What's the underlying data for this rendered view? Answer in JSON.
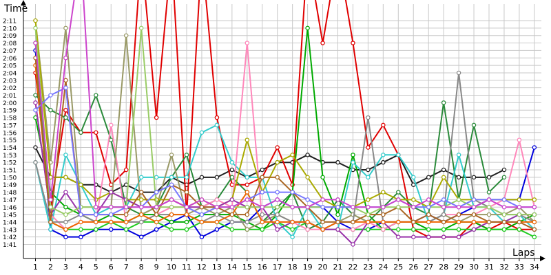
{
  "chart_data": {
    "type": "line",
    "ylabel": "Time",
    "xlabel": "Laps",
    "x": [
      1,
      2,
      3,
      4,
      5,
      6,
      7,
      8,
      9,
      10,
      11,
      12,
      13,
      14,
      15,
      16,
      17,
      18,
      19,
      20,
      21,
      22,
      23,
      24,
      25,
      26,
      27,
      28,
      29,
      30,
      31,
      32,
      33,
      34
    ],
    "y_tick_labels": [
      "1:41",
      "1:42",
      "1:43",
      "1:44",
      "1:45",
      "1:46",
      "1:47",
      "1:48",
      "1:49",
      "1:50",
      "1:51",
      "1:52",
      "1:53",
      "1:54",
      "1:55",
      "1:56",
      "1:57",
      "1:58",
      "1:59",
      "2:00",
      "2:01",
      "2:02",
      "2:03",
      "2:04",
      "2:05",
      "2:06",
      "2:07",
      "2:08",
      "2:09",
      "2:10",
      "2:11"
    ],
    "ylim_seconds": [
      100,
      132
    ],
    "grid": true,
    "legend": "none",
    "series": [
      {
        "color": "#1f1f1f",
        "values": [
          114,
          110,
          110,
          109,
          109,
          108,
          109,
          108,
          108,
          110,
          109,
          110,
          110,
          111,
          110,
          111,
          112,
          112,
          113,
          112,
          112,
          111,
          111,
          112,
          113,
          109,
          110,
          111,
          110,
          110,
          110,
          111,
          null,
          null
        ]
      },
      {
        "color": "#0000dd",
        "values": [
          127,
          103,
          102,
          102,
          103,
          103,
          103,
          102,
          103,
          104,
          105,
          102,
          103,
          104,
          104,
          106,
          107,
          106,
          106,
          106,
          104,
          103,
          103,
          104,
          104,
          104,
          105,
          104,
          105,
          106,
          107,
          107,
          107,
          114
        ]
      },
      {
        "color": "#e00000",
        "values": [
          124,
          106,
          119,
          116,
          116,
          109,
          111,
          140,
          118,
          140,
          105,
          140,
          118,
          109,
          109,
          110,
          114,
          109,
          140,
          128,
          140,
          128,
          114,
          117,
          113,
          103,
          102,
          102,
          102,
          104,
          103,
          104,
          103,
          103
        ]
      },
      {
        "color": "#00aa00",
        "values": [
          118,
          108,
          106,
          105,
          104,
          105,
          104,
          105,
          105,
          104,
          104,
          105,
          105,
          105,
          104,
          103,
          105,
          108,
          130,
          110,
          105,
          113,
          105,
          103,
          104,
          104,
          103,
          103,
          104,
          104,
          103,
          103,
          104,
          105
        ]
      },
      {
        "color": "#22cc22",
        "values": [
          128,
          104,
          103,
          103,
          103,
          104,
          103,
          104,
          104,
          103,
          103,
          104,
          104,
          103,
          103,
          103,
          104,
          103,
          104,
          103,
          103,
          103,
          103,
          103,
          103,
          103,
          103,
          103,
          103,
          103,
          103,
          103,
          103,
          102
        ]
      },
      {
        "color": "#2a8a3a",
        "values": [
          121,
          119,
          118,
          116,
          121,
          115,
          106,
          105,
          106,
          110,
          113,
          106,
          107,
          110,
          108,
          104,
          106,
          108,
          103,
          104,
          107,
          105,
          104,
          106,
          108,
          106,
          105,
          120,
          107,
          117,
          108,
          110,
          null,
          null
        ]
      },
      {
        "color": "#33cccc",
        "values": [
          112,
          103,
          113,
          109,
          105,
          106,
          106,
          110,
          110,
          110,
          110,
          116,
          117,
          112,
          110,
          110,
          104,
          102,
          106,
          103,
          103,
          112,
          110,
          113,
          113,
          110,
          104,
          105,
          113,
          106,
          106,
          104,
          105,
          103
        ]
      },
      {
        "color": "#ff88bb",
        "values": [
          120,
          105,
          103,
          104,
          104,
          117,
          104,
          104,
          105,
          106,
          106,
          106,
          107,
          106,
          128,
          104,
          104,
          104,
          103,
          103,
          103,
          103,
          104,
          103,
          104,
          104,
          104,
          105,
          105,
          105,
          106,
          107,
          115,
          106
        ]
      },
      {
        "color": "#999966",
        "values": [
          131,
          112,
          130,
          106,
          106,
          106,
          129,
          105,
          106,
          113,
          105,
          106,
          105,
          106,
          103,
          104,
          105,
          104,
          104,
          103,
          104,
          105,
          104,
          104,
          104,
          104,
          104,
          105,
          104,
          105,
          105,
          105,
          106,
          104
        ]
      },
      {
        "color": "#888888",
        "values": [
          112,
          104,
          104,
          105,
          104,
          104,
          104,
          104,
          105,
          105,
          105,
          104,
          105,
          104,
          104,
          105,
          105,
          104,
          104,
          103,
          104,
          104,
          118,
          104,
          104,
          104,
          104,
          105,
          124,
          107,
          106,
          105,
          105,
          104
        ]
      },
      {
        "color": "#aaaa00",
        "values": [
          131,
          110,
          110,
          109,
          107,
          108,
          107,
          107,
          107,
          107,
          106,
          107,
          106,
          107,
          115,
          108,
          112,
          113,
          110,
          107,
          106,
          106,
          107,
          108,
          107,
          107,
          106,
          110,
          107,
          107,
          107,
          107,
          107,
          107
        ]
      },
      {
        "color": "#9933aa",
        "values": [
          120,
          105,
          108,
          105,
          105,
          108,
          107,
          106,
          106,
          107,
          106,
          106,
          106,
          107,
          106,
          106,
          103,
          104,
          104,
          103,
          103,
          101,
          104,
          104,
          102,
          102,
          102,
          102,
          102,
          103,
          104,
          104,
          105,
          105
        ]
      },
      {
        "color": "#ee6600",
        "values": [
          125,
          104,
          103,
          104,
          104,
          104,
          104,
          105,
          104,
          105,
          105,
          104,
          104,
          105,
          108,
          104,
          104,
          104,
          104,
          103,
          104,
          104,
          104,
          104,
          104,
          104,
          104,
          104,
          104,
          104,
          104,
          104,
          104,
          104
        ]
      },
      {
        "color": "#aa6622",
        "values": [
          126,
          104,
          123,
          105,
          105,
          105,
          105,
          108,
          105,
          109,
          108,
          106,
          106,
          105,
          105,
          110,
          110,
          108,
          106,
          104,
          104,
          104,
          105,
          105,
          106,
          104,
          105,
          104,
          105,
          105,
          104,
          104,
          104,
          103
        ]
      },
      {
        "color": "#99cc66",
        "values": [
          130,
          106,
          105,
          106,
          106,
          106,
          106,
          130,
          106,
          106,
          106,
          105,
          106,
          106,
          106,
          106,
          106,
          106,
          106,
          106,
          106,
          106,
          105,
          106,
          106,
          106,
          106,
          106,
          107,
          106,
          106,
          105,
          105,
          105
        ]
      },
      {
        "color": "#7777ff",
        "values": [
          119,
          121,
          122,
          105,
          105,
          105,
          106,
          106,
          108,
          109,
          106,
          105,
          106,
          106,
          107,
          108,
          108,
          108,
          107,
          106,
          106,
          106,
          106,
          106,
          107,
          106,
          106,
          107,
          106,
          107,
          107,
          107,
          106,
          106
        ]
      },
      {
        "color": "#cc44cc",
        "values": [
          128,
          107,
          126,
          140,
          106,
          106,
          106,
          106,
          106,
          107,
          106,
          107,
          106,
          106,
          107,
          106,
          107,
          106,
          106,
          107,
          107,
          106,
          106,
          106,
          107,
          106,
          107,
          106,
          106,
          106,
          107,
          106,
          106,
          106
        ]
      }
    ]
  }
}
